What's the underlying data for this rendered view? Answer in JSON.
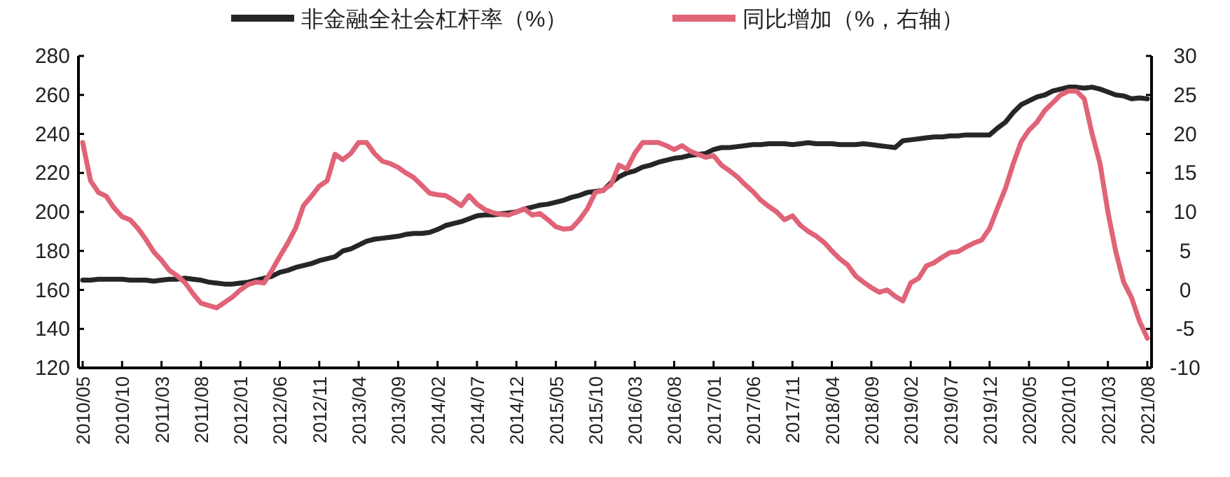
{
  "chart_data": {
    "type": "line",
    "legend": "top",
    "categories": [
      "2010/05",
      null,
      null,
      null,
      null,
      "2010/10",
      null,
      null,
      null,
      null,
      "2011/03",
      null,
      null,
      null,
      null,
      "2011/08",
      null,
      null,
      null,
      null,
      "2012/01",
      null,
      null,
      null,
      null,
      "2012/06",
      null,
      null,
      null,
      null,
      "2012/11",
      null,
      null,
      null,
      null,
      "2013/04",
      null,
      null,
      null,
      null,
      "2013/09",
      null,
      null,
      null,
      null,
      "2014/02",
      null,
      null,
      null,
      null,
      "2014/07",
      null,
      null,
      null,
      null,
      "2014/12",
      null,
      null,
      null,
      null,
      "2015/05",
      null,
      null,
      null,
      null,
      "2015/10",
      null,
      null,
      null,
      null,
      "2016/03",
      null,
      null,
      null,
      null,
      "2016/08",
      null,
      null,
      null,
      null,
      "2017/01",
      null,
      null,
      null,
      null,
      "2017/06",
      null,
      null,
      null,
      null,
      "2017/11",
      null,
      null,
      null,
      null,
      "2018/04",
      null,
      null,
      null,
      null,
      "2018/09",
      null,
      null,
      null,
      null,
      "2019/02",
      null,
      null,
      null,
      null,
      "2019/07",
      null,
      null,
      null,
      null,
      "2019/12",
      null,
      null,
      null,
      null,
      "2020/05",
      null,
      null,
      null,
      null,
      "2020/10",
      null,
      null,
      null,
      null,
      "2021/03",
      null,
      null,
      null,
      null,
      "2021/08"
    ],
    "series": [
      {
        "name": "非金融全社会杠杆率（%）",
        "color": "#262626",
        "values": [
          165,
          165,
          165.5,
          165.5,
          165.5,
          165.5,
          165,
          165,
          165,
          164.5,
          165,
          165.5,
          165.5,
          166,
          165.5,
          165,
          164,
          163.5,
          163,
          163,
          163.5,
          164,
          165,
          166,
          167,
          169,
          170,
          171.5,
          172.5,
          173.5,
          175,
          176,
          177,
          180,
          181,
          183,
          185,
          186,
          186.5,
          187,
          187.5,
          188.5,
          189,
          189,
          189.5,
          191,
          193,
          194,
          195,
          196.5,
          198,
          198.5,
          198.5,
          199,
          199.5,
          200,
          201.5,
          202.5,
          203.5,
          204,
          205,
          206,
          207.5,
          208.5,
          210,
          210.5,
          211,
          215,
          218,
          220,
          221,
          223,
          224,
          225.5,
          226.5,
          227.5,
          228,
          229,
          229.5,
          230,
          232,
          233,
          233,
          233.5,
          234,
          234.5,
          234.5,
          235,
          235,
          235,
          234.5,
          235,
          235.5,
          235,
          235,
          235,
          234.5,
          234.5,
          234.5,
          235,
          234.5,
          234,
          233.5,
          233,
          236.5,
          237,
          237.5,
          238,
          238.5,
          238.5,
          239,
          239,
          239.5,
          239.5,
          239.5,
          239.5,
          243,
          246,
          251,
          255,
          257,
          259,
          260,
          262,
          263,
          264,
          264,
          263.5,
          264,
          263,
          261.5,
          260,
          259.5,
          258,
          258.5,
          258
        ]
      },
      {
        "name": "同比增加（%，右轴）",
        "color": "#e06377",
        "axis": "y2",
        "values": [
          18.9,
          14,
          12.5,
          12,
          10.5,
          9.4,
          9,
          7.9,
          6.5,
          4.9,
          3.8,
          2.5,
          1.8,
          0.9,
          -0.5,
          -1.7,
          -2,
          -2.3,
          -1.6,
          -0.9,
          0,
          0.7,
          1,
          0.9,
          2.5,
          4.3,
          6,
          7.9,
          10.8,
          12,
          13.3,
          14,
          17.4,
          16.7,
          17.5,
          18.9,
          18.9,
          17.5,
          16.5,
          16.2,
          15.7,
          15,
          14.4,
          13.4,
          12.4,
          12.2,
          12.1,
          11.5,
          10.8,
          12.1,
          11,
          10.3,
          9.9,
          9.7,
          9.6,
          10,
          10.4,
          9.6,
          9.8,
          9,
          8.1,
          7.8,
          7.9,
          9,
          10.4,
          12.5,
          12.8,
          13.5,
          16,
          15.5,
          17.5,
          18.9,
          18.9,
          18.9,
          18.5,
          18,
          18.5,
          17.8,
          17.4,
          17,
          17.2,
          16,
          15.3,
          14.5,
          13.5,
          12.6,
          11.5,
          10.7,
          10,
          9,
          9.5,
          8.3,
          7.5,
          6.9,
          6.1,
          5,
          4,
          3.2,
          1.8,
          1,
          0.3,
          -0.3,
          0,
          -0.8,
          -1.4,
          0.9,
          1.5,
          3.1,
          3.5,
          4.2,
          4.8,
          4.9,
          5.5,
          6,
          6.4,
          7.9,
          10.5,
          13,
          16.2,
          19,
          20.5,
          21.5,
          23,
          24,
          25,
          25.5,
          25.5,
          24.5,
          20,
          16.2,
          10,
          4.9,
          1,
          -1,
          -4,
          -6.2
        ]
      }
    ],
    "ylim": [
      120,
      280
    ],
    "yticks": [
      120,
      140,
      160,
      180,
      200,
      220,
      240,
      260,
      280
    ],
    "y2lim": [
      -10,
      30
    ],
    "y2ticks": [
      -10,
      -5,
      0,
      5,
      10,
      15,
      20,
      25,
      30
    ]
  }
}
